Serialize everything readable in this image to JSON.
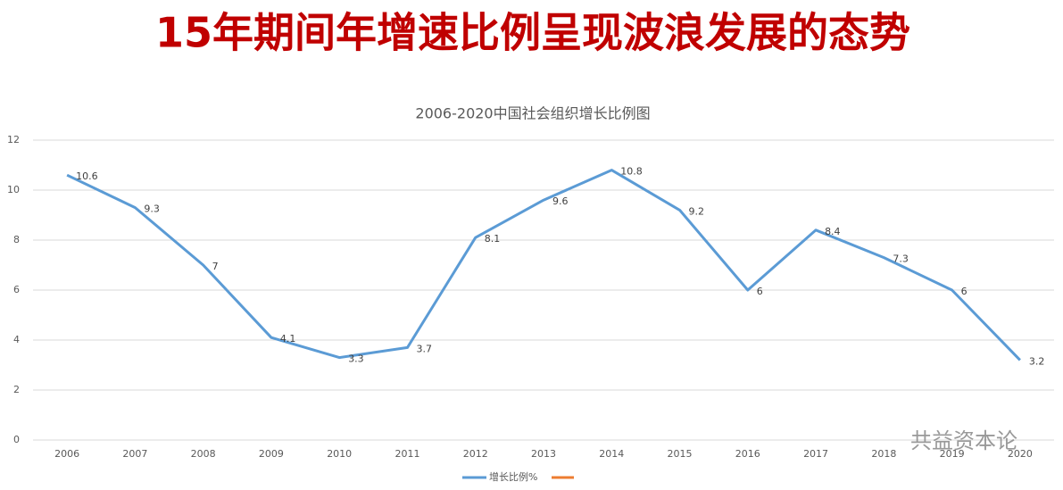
{
  "heading": "15年期间年增速比例呈现波浪发展的态势",
  "watermark": "共益资本论",
  "chart_data": {
    "type": "line",
    "title": "2006-2020中国社会组织增长比例图",
    "categories": [
      "2006",
      "2007",
      "2008",
      "2009",
      "2010",
      "2011",
      "2012",
      "2013",
      "2014",
      "2015",
      "2016",
      "2017",
      "2018",
      "2019",
      "2020"
    ],
    "series": [
      {
        "name": "增长比例%",
        "color": "#5b9bd5",
        "values": [
          10.6,
          9.3,
          7,
          4.1,
          3.3,
          3.7,
          8.1,
          9.6,
          10.8,
          9.2,
          6,
          8.4,
          7.3,
          6,
          3.2
        ]
      }
    ],
    "ylim": [
      0,
      12
    ],
    "yticks": [
      0,
      2,
      4,
      6,
      8,
      10,
      12
    ],
    "grid": true,
    "data_labels": true
  }
}
